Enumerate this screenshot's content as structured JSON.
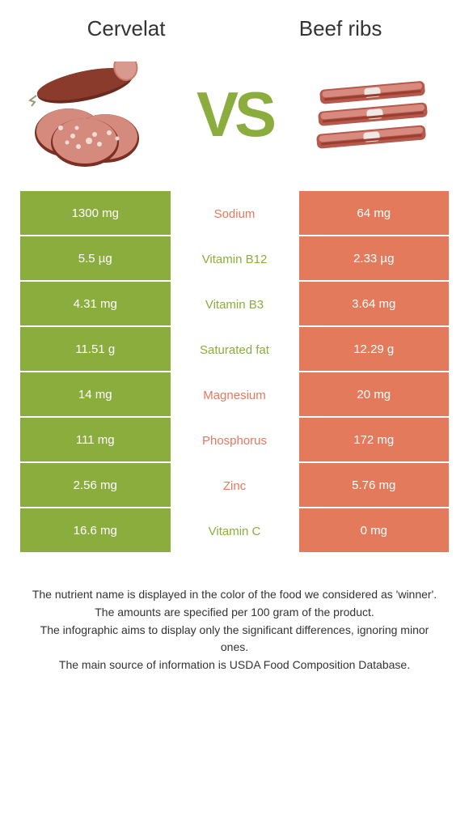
{
  "header": {
    "left_title": "Cervelat",
    "right_title": "Beef ribs"
  },
  "vs_label": "VS",
  "colors": {
    "green": "#8aad3e",
    "orange": "#e47a5c",
    "green_text": "#8aad3e",
    "orange_text": "#e47a5c",
    "vs_color": "#8aad3e"
  },
  "rows": [
    {
      "left": "1300 mg",
      "label": "Sodium",
      "right": "64 mg",
      "winner": "orange"
    },
    {
      "left": "5.5 µg",
      "label": "Vitamin B12",
      "right": "2.33 µg",
      "winner": "green"
    },
    {
      "left": "4.31 mg",
      "label": "Vitamin B3",
      "right": "3.64 mg",
      "winner": "green"
    },
    {
      "left": "11.51 g",
      "label": "Saturated fat",
      "right": "12.29 g",
      "winner": "green"
    },
    {
      "left": "14 mg",
      "label": "Magnesium",
      "right": "20 mg",
      "winner": "orange"
    },
    {
      "left": "111 mg",
      "label": "Phosphorus",
      "right": "172 mg",
      "winner": "orange"
    },
    {
      "left": "2.56 mg",
      "label": "Zinc",
      "right": "5.76 mg",
      "winner": "orange"
    },
    {
      "left": "16.6 mg",
      "label": "Vitamin C",
      "right": "0 mg",
      "winner": "green"
    }
  ],
  "footer": {
    "line1": "The nutrient name is displayed in the color of the food we considered as 'winner'.",
    "line2": "The amounts are specified per 100 gram of the product.",
    "line3": "The infographic aims to display only the significant differences, ignoring minor ones.",
    "line4": "The main source of information is USDA Food Composition Database."
  }
}
